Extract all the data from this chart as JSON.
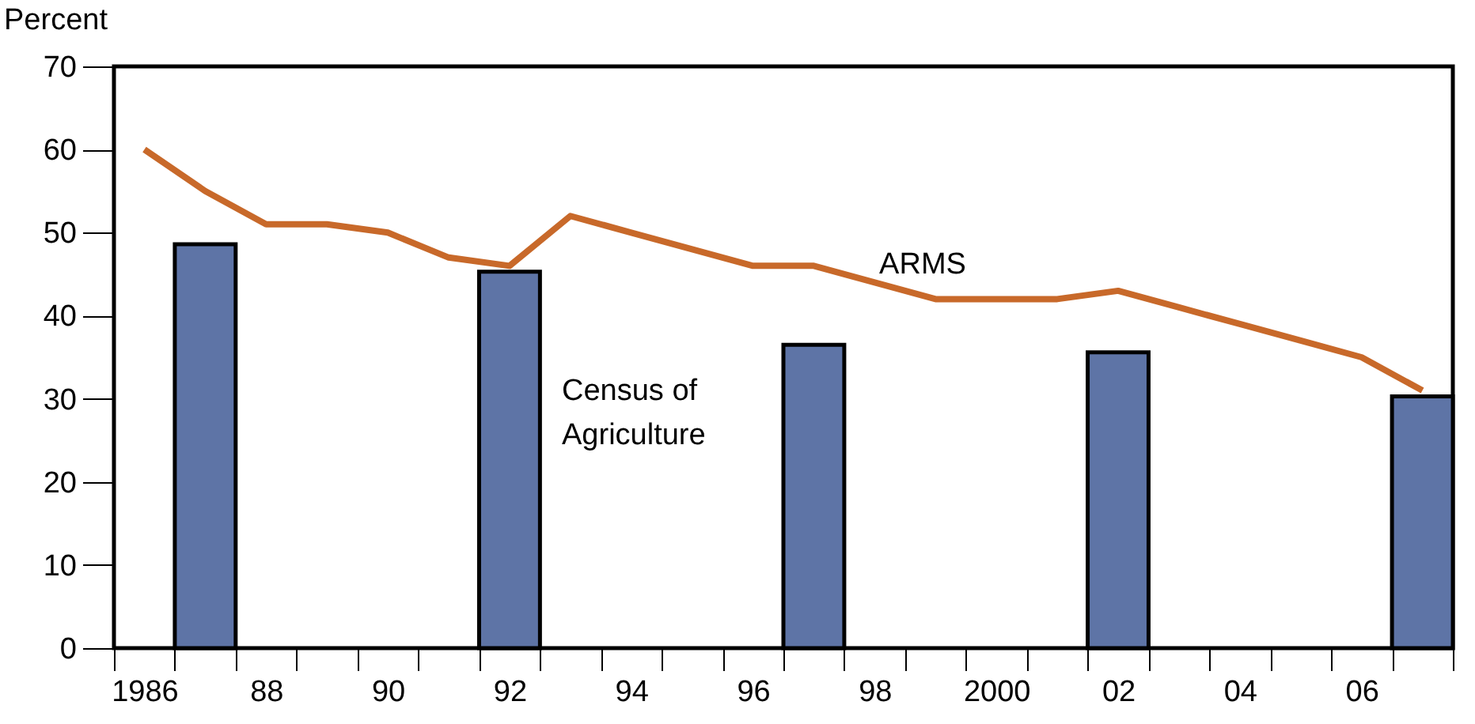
{
  "chart_data": {
    "type": "bar",
    "ylabel": "Percent",
    "categories": [
      "1986",
      null,
      "88",
      null,
      "90",
      null,
      "92",
      null,
      "94",
      null,
      "96",
      null,
      "98",
      null,
      "2000",
      null,
      "02",
      null,
      "04",
      null,
      "06",
      null
    ],
    "series": [
      {
        "name": "Census of Agriculture",
        "color": "#5e74a6",
        "values": [
          null,
          48.6,
          null,
          null,
          null,
          null,
          45.3,
          null,
          null,
          null,
          null,
          36.5,
          null,
          null,
          null,
          null,
          35.6,
          null,
          null,
          null,
          null,
          30.3
        ]
      },
      {
        "name": "ARMS",
        "type": "line",
        "color": "#c8692a",
        "values": [
          60,
          55,
          51,
          51,
          50,
          47,
          46,
          52,
          50,
          48,
          46,
          46,
          44,
          42,
          42,
          42,
          43,
          41,
          39,
          37,
          35,
          31
        ]
      }
    ],
    "ylim": [
      0,
      70
    ],
    "yticks": [
      0,
      10,
      20,
      30,
      40,
      50,
      60,
      70
    ],
    "grid": false,
    "legend": false
  }
}
